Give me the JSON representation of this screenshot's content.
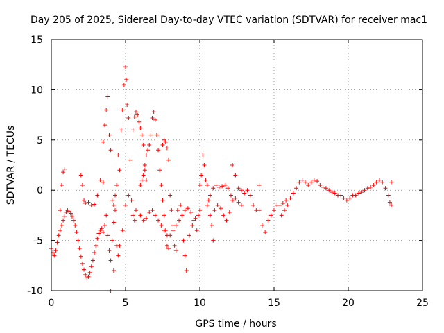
{
  "chart_data": {
    "type": "scatter",
    "title": "Day 205 of 2025, Sidereal Day-to-day VTEC variation (SDTVAR) for receiver mac1",
    "xlabel": "GPS time / hours",
    "ylabel": "SDTVAR / TECUs",
    "xlim": [
      0,
      25
    ],
    "ylim": [
      -10,
      15
    ],
    "xticks": [
      0,
      5,
      10,
      15,
      20,
      25
    ],
    "yticks": [
      -10,
      -5,
      0,
      5,
      10,
      15
    ],
    "grid": true,
    "marker": "+",
    "color": "#ff0000",
    "series": [
      {
        "name": "SDTVAR",
        "points": [
          [
            0.0,
            -5.8
          ],
          [
            0.1,
            -6.2
          ],
          [
            0.2,
            -6.5
          ],
          [
            0.3,
            -6.0
          ],
          [
            0.4,
            -5.2
          ],
          [
            0.5,
            -4.5
          ],
          [
            0.6,
            -2.0
          ],
          [
            0.7,
            0.5
          ],
          [
            0.8,
            1.8
          ],
          [
            0.9,
            2.1
          ],
          [
            0.6,
            -4.0
          ],
          [
            0.7,
            -3.5
          ],
          [
            0.8,
            -3.0
          ],
          [
            0.9,
            -2.6
          ],
          [
            1.0,
            -2.2
          ],
          [
            1.1,
            -2.0
          ],
          [
            1.2,
            -2.1
          ],
          [
            1.3,
            -2.3
          ],
          [
            1.4,
            -2.6
          ],
          [
            1.5,
            -3.0
          ],
          [
            1.6,
            -3.5
          ],
          [
            1.7,
            -4.2
          ],
          [
            1.8,
            -5.0
          ],
          [
            1.9,
            -5.8
          ],
          [
            2.0,
            -6.6
          ],
          [
            2.1,
            -7.3
          ],
          [
            2.2,
            -7.9
          ],
          [
            2.3,
            -8.4
          ],
          [
            2.4,
            -8.7
          ],
          [
            2.5,
            -8.6
          ],
          [
            2.6,
            -8.2
          ],
          [
            2.7,
            -7.6
          ],
          [
            2.8,
            -7.0
          ],
          [
            2.9,
            -6.2
          ],
          [
            3.0,
            -5.5
          ],
          [
            3.1,
            -4.8
          ],
          [
            3.2,
            -4.3
          ],
          [
            3.3,
            -4.0
          ],
          [
            3.4,
            -3.8
          ],
          [
            3.5,
            -4.2
          ],
          [
            2.0,
            1.5
          ],
          [
            2.1,
            0.5
          ],
          [
            2.2,
            -1.0
          ],
          [
            2.3,
            -1.3
          ],
          [
            2.5,
            -1.2
          ],
          [
            2.7,
            -1.5
          ],
          [
            2.9,
            -1.4
          ],
          [
            3.1,
            -0.5
          ],
          [
            3.3,
            1.0
          ],
          [
            3.5,
            0.8
          ],
          [
            3.6,
            -3.5
          ],
          [
            3.7,
            -2.5
          ],
          [
            3.8,
            -4.5
          ],
          [
            3.9,
            -6.0
          ],
          [
            4.0,
            -7.0
          ],
          [
            4.1,
            -5.0
          ],
          [
            4.2,
            -3.2
          ],
          [
            4.3,
            -2.0
          ],
          [
            4.4,
            -5.5
          ],
          [
            4.5,
            -6.5
          ],
          [
            3.5,
            4.8
          ],
          [
            3.6,
            6.5
          ],
          [
            3.7,
            8.0
          ],
          [
            3.8,
            9.3
          ],
          [
            3.9,
            5.5
          ],
          [
            4.0,
            4.0
          ],
          [
            4.1,
            -1.0
          ],
          [
            4.2,
            -1.5
          ],
          [
            4.3,
            -0.5
          ],
          [
            4.4,
            0.5
          ],
          [
            4.5,
            3.5
          ],
          [
            4.6,
            2.0
          ],
          [
            4.7,
            6.0
          ],
          [
            4.8,
            8.0
          ],
          [
            4.9,
            10.5
          ],
          [
            5.0,
            12.3
          ],
          [
            5.05,
            11.0
          ],
          [
            5.1,
            8.5
          ],
          [
            5.2,
            7.2
          ],
          [
            5.3,
            3.0
          ],
          [
            4.0,
            -10.0
          ],
          [
            4.2,
            -8.0
          ],
          [
            4.6,
            -5.5
          ],
          [
            4.8,
            -4.0
          ],
          [
            5.0,
            -1.5
          ],
          [
            5.2,
            -0.5
          ],
          [
            5.4,
            -1.0
          ],
          [
            5.5,
            -2.5
          ],
          [
            5.6,
            -3.0
          ],
          [
            5.7,
            -2.0
          ],
          [
            5.5,
            6.0
          ],
          [
            5.6,
            7.3
          ],
          [
            5.7,
            7.8
          ],
          [
            5.8,
            7.5
          ],
          [
            5.9,
            6.8
          ],
          [
            6.0,
            6.2
          ],
          [
            6.1,
            5.5
          ],
          [
            6.2,
            4.5
          ],
          [
            6.3,
            2.0
          ],
          [
            6.4,
            1.0
          ],
          [
            6.0,
            0.5
          ],
          [
            6.1,
            1.0
          ],
          [
            6.2,
            1.5
          ],
          [
            6.3,
            2.5
          ],
          [
            6.4,
            3.5
          ],
          [
            6.5,
            4.0
          ],
          [
            6.6,
            4.5
          ],
          [
            6.7,
            5.5
          ],
          [
            6.8,
            7.2
          ],
          [
            6.9,
            7.8
          ],
          [
            7.0,
            7.0
          ],
          [
            7.1,
            5.5
          ],
          [
            7.2,
            4.0
          ],
          [
            7.3,
            2.0
          ],
          [
            7.4,
            0.5
          ],
          [
            7.5,
            -1.0
          ],
          [
            7.6,
            -2.5
          ],
          [
            7.7,
            -4.0
          ],
          [
            7.8,
            -5.5
          ],
          [
            7.9,
            -5.8
          ],
          [
            6.0,
            -2.5
          ],
          [
            6.2,
            -3.0
          ],
          [
            6.4,
            -2.8
          ],
          [
            6.6,
            -2.2
          ],
          [
            6.8,
            -2.0
          ],
          [
            7.0,
            -2.5
          ],
          [
            7.2,
            -3.0
          ],
          [
            7.4,
            -3.5
          ],
          [
            7.6,
            -4.0
          ],
          [
            7.8,
            -4.5
          ],
          [
            7.5,
            4.5
          ],
          [
            7.6,
            5.0
          ],
          [
            7.7,
            4.8
          ],
          [
            7.8,
            4.2
          ],
          [
            7.9,
            3.0
          ],
          [
            8.0,
            -0.5
          ],
          [
            8.1,
            -2.0
          ],
          [
            8.2,
            -3.5
          ],
          [
            8.3,
            -5.5
          ],
          [
            8.4,
            -6.0
          ],
          [
            8.0,
            -4.5
          ],
          [
            8.2,
            -4.0
          ],
          [
            8.4,
            -3.5
          ],
          [
            8.6,
            -3.0
          ],
          [
            8.8,
            -2.5
          ],
          [
            9.0,
            -2.0
          ],
          [
            9.2,
            -1.8
          ],
          [
            9.4,
            -2.2
          ],
          [
            9.6,
            -3.0
          ],
          [
            9.8,
            -4.0
          ],
          [
            8.5,
            -2.0
          ],
          [
            8.7,
            -1.5
          ],
          [
            8.9,
            -5.0
          ],
          [
            9.0,
            -6.5
          ],
          [
            9.1,
            -8.0
          ],
          [
            9.3,
            -4.5
          ],
          [
            9.5,
            -3.5
          ],
          [
            9.7,
            -2.8
          ],
          [
            9.9,
            -2.5
          ],
          [
            10.0,
            -2.0
          ],
          [
            10.0,
            0.5
          ],
          [
            10.1,
            1.5
          ],
          [
            10.2,
            3.5
          ],
          [
            10.3,
            2.5
          ],
          [
            10.4,
            1.0
          ],
          [
            10.5,
            0.5
          ],
          [
            10.6,
            -1.0
          ],
          [
            10.7,
            -2.5
          ],
          [
            10.8,
            -3.5
          ],
          [
            10.9,
            -5.0
          ],
          [
            10.5,
            -1.5
          ],
          [
            10.7,
            -0.5
          ],
          [
            10.9,
            0.2
          ],
          [
            11.1,
            0.5
          ],
          [
            11.3,
            0.3
          ],
          [
            11.5,
            0.4
          ],
          [
            11.7,
            0.5
          ],
          [
            11.9,
            0.2
          ],
          [
            12.1,
            -0.5
          ],
          [
            12.3,
            -1.0
          ],
          [
            11.0,
            -2.0
          ],
          [
            11.2,
            -1.5
          ],
          [
            11.4,
            -1.8
          ],
          [
            11.6,
            -2.5
          ],
          [
            11.8,
            -3.0
          ],
          [
            12.0,
            -2.2
          ],
          [
            12.2,
            -1.0
          ],
          [
            12.4,
            -0.8
          ],
          [
            12.6,
            -1.2
          ],
          [
            12.8,
            -1.5
          ],
          [
            12.2,
            2.5
          ],
          [
            12.4,
            1.5
          ],
          [
            12.6,
            0.2
          ],
          [
            12.8,
            0.0
          ],
          [
            13.0,
            -0.3
          ],
          [
            13.2,
            0.0
          ],
          [
            13.4,
            -0.5
          ],
          [
            13.6,
            -1.5
          ],
          [
            13.8,
            -2.0
          ],
          [
            14.0,
            0.5
          ],
          [
            14.0,
            -2.0
          ],
          [
            14.2,
            -3.5
          ],
          [
            14.4,
            -4.2
          ],
          [
            14.6,
            -3.0
          ],
          [
            14.8,
            -2.5
          ],
          [
            15.0,
            -2.0
          ],
          [
            15.2,
            -1.5
          ],
          [
            15.4,
            -1.5
          ],
          [
            15.6,
            -1.3
          ],
          [
            15.8,
            -1.0
          ],
          [
            15.5,
            -2.5
          ],
          [
            15.7,
            -2.0
          ],
          [
            15.9,
            -1.5
          ],
          [
            16.1,
            -0.8
          ],
          [
            16.3,
            -0.3
          ],
          [
            16.5,
            0.2
          ],
          [
            16.7,
            0.8
          ],
          [
            16.9,
            1.0
          ],
          [
            17.1,
            0.8
          ],
          [
            17.3,
            0.5
          ],
          [
            17.5,
            0.8
          ],
          [
            17.7,
            1.0
          ],
          [
            17.9,
            0.9
          ],
          [
            18.1,
            0.5
          ],
          [
            18.3,
            0.3
          ],
          [
            18.5,
            0.2
          ],
          [
            18.7,
            0.0
          ],
          [
            18.9,
            -0.2
          ],
          [
            19.1,
            -0.3
          ],
          [
            19.3,
            -0.5
          ],
          [
            19.5,
            -0.5
          ],
          [
            19.7,
            -0.8
          ],
          [
            19.9,
            -1.0
          ],
          [
            20.1,
            -0.8
          ],
          [
            20.3,
            -0.5
          ],
          [
            20.5,
            -0.5
          ],
          [
            20.7,
            -0.3
          ],
          [
            20.9,
            -0.2
          ],
          [
            21.1,
            0.0
          ],
          [
            21.3,
            0.2
          ],
          [
            21.5,
            0.3
          ],
          [
            21.7,
            0.5
          ],
          [
            21.9,
            0.8
          ],
          [
            22.1,
            1.0
          ],
          [
            22.3,
            0.8
          ],
          [
            22.5,
            0.2
          ],
          [
            22.7,
            -0.5
          ],
          [
            22.8,
            -1.2
          ],
          [
            22.9,
            -1.5
          ],
          [
            22.9,
            0.8
          ]
        ]
      }
    ]
  }
}
